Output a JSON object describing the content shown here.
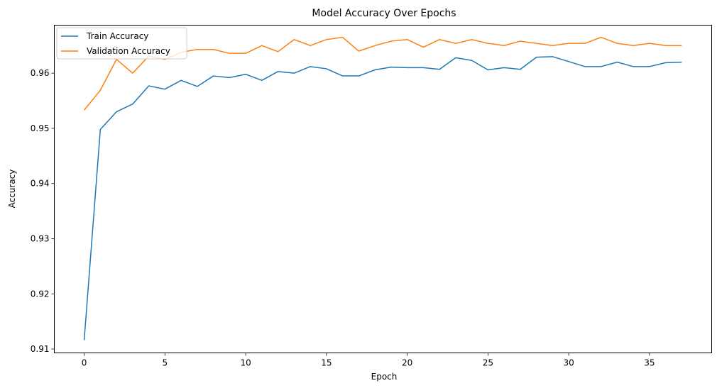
{
  "chart_data": {
    "type": "line",
    "title": "Model Accuracy Over Epochs",
    "xlabel": "Epoch",
    "ylabel": "Accuracy",
    "xlim": [
      -1.85,
      38.85
    ],
    "ylim": [
      0.9093,
      0.9687
    ],
    "xticks": [
      0,
      5,
      10,
      15,
      20,
      25,
      30,
      35
    ],
    "yticks": [
      0.91,
      0.92,
      0.93,
      0.94,
      0.95,
      0.96
    ],
    "ytick_labels": [
      "0.91",
      "0.92",
      "0.93",
      "0.94",
      "0.95",
      "0.96"
    ],
    "grid": false,
    "legend": "upper-left",
    "x": [
      0,
      1,
      2,
      3,
      4,
      5,
      6,
      7,
      8,
      9,
      10,
      11,
      12,
      13,
      14,
      15,
      16,
      17,
      18,
      19,
      20,
      21,
      22,
      23,
      24,
      25,
      26,
      27,
      28,
      29,
      30,
      31,
      32,
      33,
      34,
      35,
      36,
      37
    ],
    "series": [
      {
        "name": "Train Accuracy",
        "color": "#1f77b4",
        "values": [
          0.9116,
          0.9498,
          0.953,
          0.9544,
          0.9577,
          0.9571,
          0.9587,
          0.9576,
          0.9595,
          0.9592,
          0.9598,
          0.9587,
          0.9603,
          0.96,
          0.9612,
          0.9608,
          0.9595,
          0.9595,
          0.9606,
          0.9611,
          0.961,
          0.961,
          0.9607,
          0.9628,
          0.9623,
          0.9606,
          0.961,
          0.9607,
          0.9629,
          0.963,
          0.9621,
          0.9612,
          0.9612,
          0.962,
          0.9612,
          0.9612,
          0.9619,
          0.962
        ]
      },
      {
        "name": "Validation Accuracy",
        "color": "#ff7f0e",
        "values": [
          0.9533,
          0.9569,
          0.9625,
          0.96,
          0.9631,
          0.9625,
          0.9638,
          0.9643,
          0.9643,
          0.9636,
          0.9636,
          0.965,
          0.9639,
          0.9661,
          0.965,
          0.9661,
          0.9665,
          0.964,
          0.965,
          0.9658,
          0.9661,
          0.9647,
          0.9661,
          0.9654,
          0.9661,
          0.9654,
          0.965,
          0.9658,
          0.9654,
          0.965,
          0.9654,
          0.9654,
          0.9665,
          0.9654,
          0.965,
          0.9654,
          0.965,
          0.965
        ]
      }
    ]
  }
}
